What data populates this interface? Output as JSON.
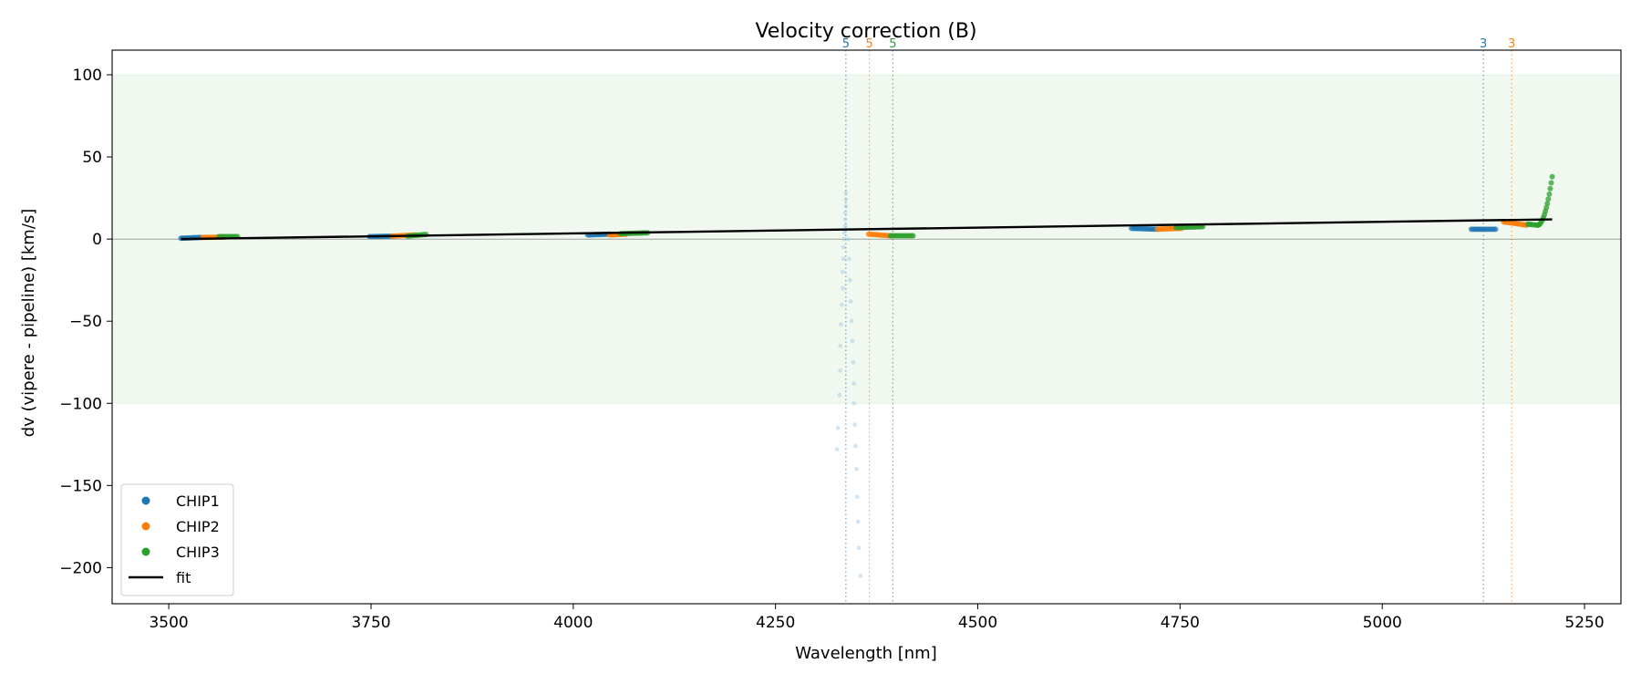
{
  "chart_data": {
    "type": "scatter",
    "title": "Velocity correction (B)",
    "xlabel": "Wavelength [nm]",
    "ylabel": "dv (vipere - pipeline) [km/s]",
    "xlim": [
      3430,
      5295
    ],
    "ylim": [
      -222,
      115
    ],
    "xticks": [
      3500,
      3750,
      4000,
      4250,
      4500,
      4750,
      5000,
      5250
    ],
    "yticks": [
      -200,
      -150,
      -100,
      -50,
      0,
      50,
      100
    ],
    "ytick_labels": [
      "−200",
      "−150",
      "−100",
      "−50",
      "0",
      "50",
      "100"
    ],
    "band": {
      "y_low": -100,
      "y_high": 100,
      "color": "#2ca02c"
    },
    "zero_line": 0,
    "colors": {
      "CHIP1": "#1f77b4",
      "CHIP2": "#ff7f0e",
      "CHIP3": "#2ca02c",
      "fit": "#000000"
    },
    "legend": {
      "placement": "lower-left",
      "entries": [
        {
          "label": "CHIP1",
          "kind": "marker",
          "color": "#1f77b4"
        },
        {
          "label": "CHIP2",
          "kind": "marker",
          "color": "#ff7f0e"
        },
        {
          "label": "CHIP3",
          "kind": "marker",
          "color": "#2ca02c"
        },
        {
          "label": "fit",
          "kind": "line",
          "color": "#000000"
        }
      ]
    },
    "series": [
      {
        "name": "CHIP1",
        "color": "#1f77b4",
        "segments": [
          {
            "x0": 3515,
            "x1": 3540,
            "y0": 0.5,
            "y1": 1.0,
            "n": 14
          },
          {
            "x0": 3748,
            "x1": 3778,
            "y0": 1.5,
            "y1": 1.8,
            "n": 14
          },
          {
            "x0": 4018,
            "x1": 4045,
            "y0": 2.5,
            "y1": 3.0,
            "n": 14
          },
          {
            "x0": 4690,
            "x1": 4722,
            "y0": 6.5,
            "y1": 6.0,
            "n": 16
          },
          {
            "x0": 5110,
            "x1": 5140,
            "y0": 6.0,
            "y1": 6.0,
            "n": 14
          }
        ]
      },
      {
        "name": "CHIP2",
        "color": "#ff7f0e",
        "segments": [
          {
            "x0": 3542,
            "x1": 3568,
            "y0": 1.0,
            "y1": 1.2,
            "n": 14
          },
          {
            "x0": 3776,
            "x1": 3805,
            "y0": 1.8,
            "y1": 2.5,
            "n": 14
          },
          {
            "x0": 4045,
            "x1": 4065,
            "y0": 2.5,
            "y1": 3.0,
            "n": 12
          },
          {
            "x0": 4365,
            "x1": 4392,
            "y0": 3.0,
            "y1": 2.0,
            "n": 14
          },
          {
            "x0": 4722,
            "x1": 4752,
            "y0": 6.0,
            "y1": 6.5,
            "n": 16
          },
          {
            "x0": 5150,
            "x1": 5178,
            "y0": 10.5,
            "y1": 8.5,
            "n": 16
          }
        ]
      },
      {
        "name": "CHIP3",
        "color": "#2ca02c",
        "segments": [
          {
            "x0": 3562,
            "x1": 3585,
            "y0": 1.5,
            "y1": 1.5,
            "n": 12
          },
          {
            "x0": 3795,
            "x1": 3818,
            "y0": 1.8,
            "y1": 2.8,
            "n": 12
          },
          {
            "x0": 4058,
            "x1": 4092,
            "y0": 3.3,
            "y1": 3.8,
            "n": 16
          },
          {
            "x0": 4392,
            "x1": 4420,
            "y0": 2.0,
            "y1": 2.0,
            "n": 14
          },
          {
            "x0": 4745,
            "x1": 4778,
            "y0": 7.0,
            "y1": 7.5,
            "n": 16
          },
          {
            "x0": 5180,
            "x1": 5192,
            "y0": 9.0,
            "y1": 8.5,
            "n": 8
          },
          {
            "x0": 5192,
            "x1": 5210,
            "y0": 8.5,
            "y1": 38.0,
            "n": 16
          }
        ]
      }
    ],
    "outliers": {
      "name": "CHIP1",
      "color": "#9ec8df",
      "points": [
        {
          "x": 4337,
          "y": 28
        },
        {
          "x": 4337,
          "y": 24
        },
        {
          "x": 4337,
          "y": 20
        },
        {
          "x": 4336,
          "y": 16
        },
        {
          "x": 4336,
          "y": 12
        },
        {
          "x": 4336,
          "y": 8
        },
        {
          "x": 4335,
          "y": 4
        },
        {
          "x": 4335,
          "y": 0
        },
        {
          "x": 4334,
          "y": -5
        },
        {
          "x": 4334,
          "y": -12
        },
        {
          "x": 4333,
          "y": -20
        },
        {
          "x": 4333,
          "y": -30
        },
        {
          "x": 4332,
          "y": -40
        },
        {
          "x": 4331,
          "y": -52
        },
        {
          "x": 4330,
          "y": -65
        },
        {
          "x": 4330,
          "y": -80
        },
        {
          "x": 4329,
          "y": -95
        },
        {
          "x": 4327,
          "y": -115
        },
        {
          "x": 4326,
          "y": -128
        },
        {
          "x": 4340,
          "y": 0
        },
        {
          "x": 4341,
          "y": -12
        },
        {
          "x": 4342,
          "y": -25
        },
        {
          "x": 4343,
          "y": -38
        },
        {
          "x": 4344,
          "y": -50
        },
        {
          "x": 4345,
          "y": -62
        },
        {
          "x": 4346,
          "y": -75
        },
        {
          "x": 4347,
          "y": -88
        },
        {
          "x": 4347,
          "y": -100
        },
        {
          "x": 4348,
          "y": -113
        },
        {
          "x": 4349,
          "y": -126
        },
        {
          "x": 4350,
          "y": -140
        },
        {
          "x": 4351,
          "y": -157
        },
        {
          "x": 4352,
          "y": -172
        },
        {
          "x": 4353,
          "y": -188
        },
        {
          "x": 4355,
          "y": -205
        }
      ]
    },
    "fit": {
      "x": [
        3515,
        5210
      ],
      "y": [
        0.0,
        12.0
      ]
    },
    "order_markers": [
      {
        "x": 4337,
        "label": "5",
        "color": "#1f77b4"
      },
      {
        "x": 4366,
        "label": "5",
        "color": "#ff7f0e"
      },
      {
        "x": 4395,
        "label": "5",
        "color": "#2ca02c"
      },
      {
        "x": 5125,
        "label": "3",
        "color": "#1f77b4"
      },
      {
        "x": 5160,
        "label": "3",
        "color": "#ff7f0e"
      }
    ]
  }
}
